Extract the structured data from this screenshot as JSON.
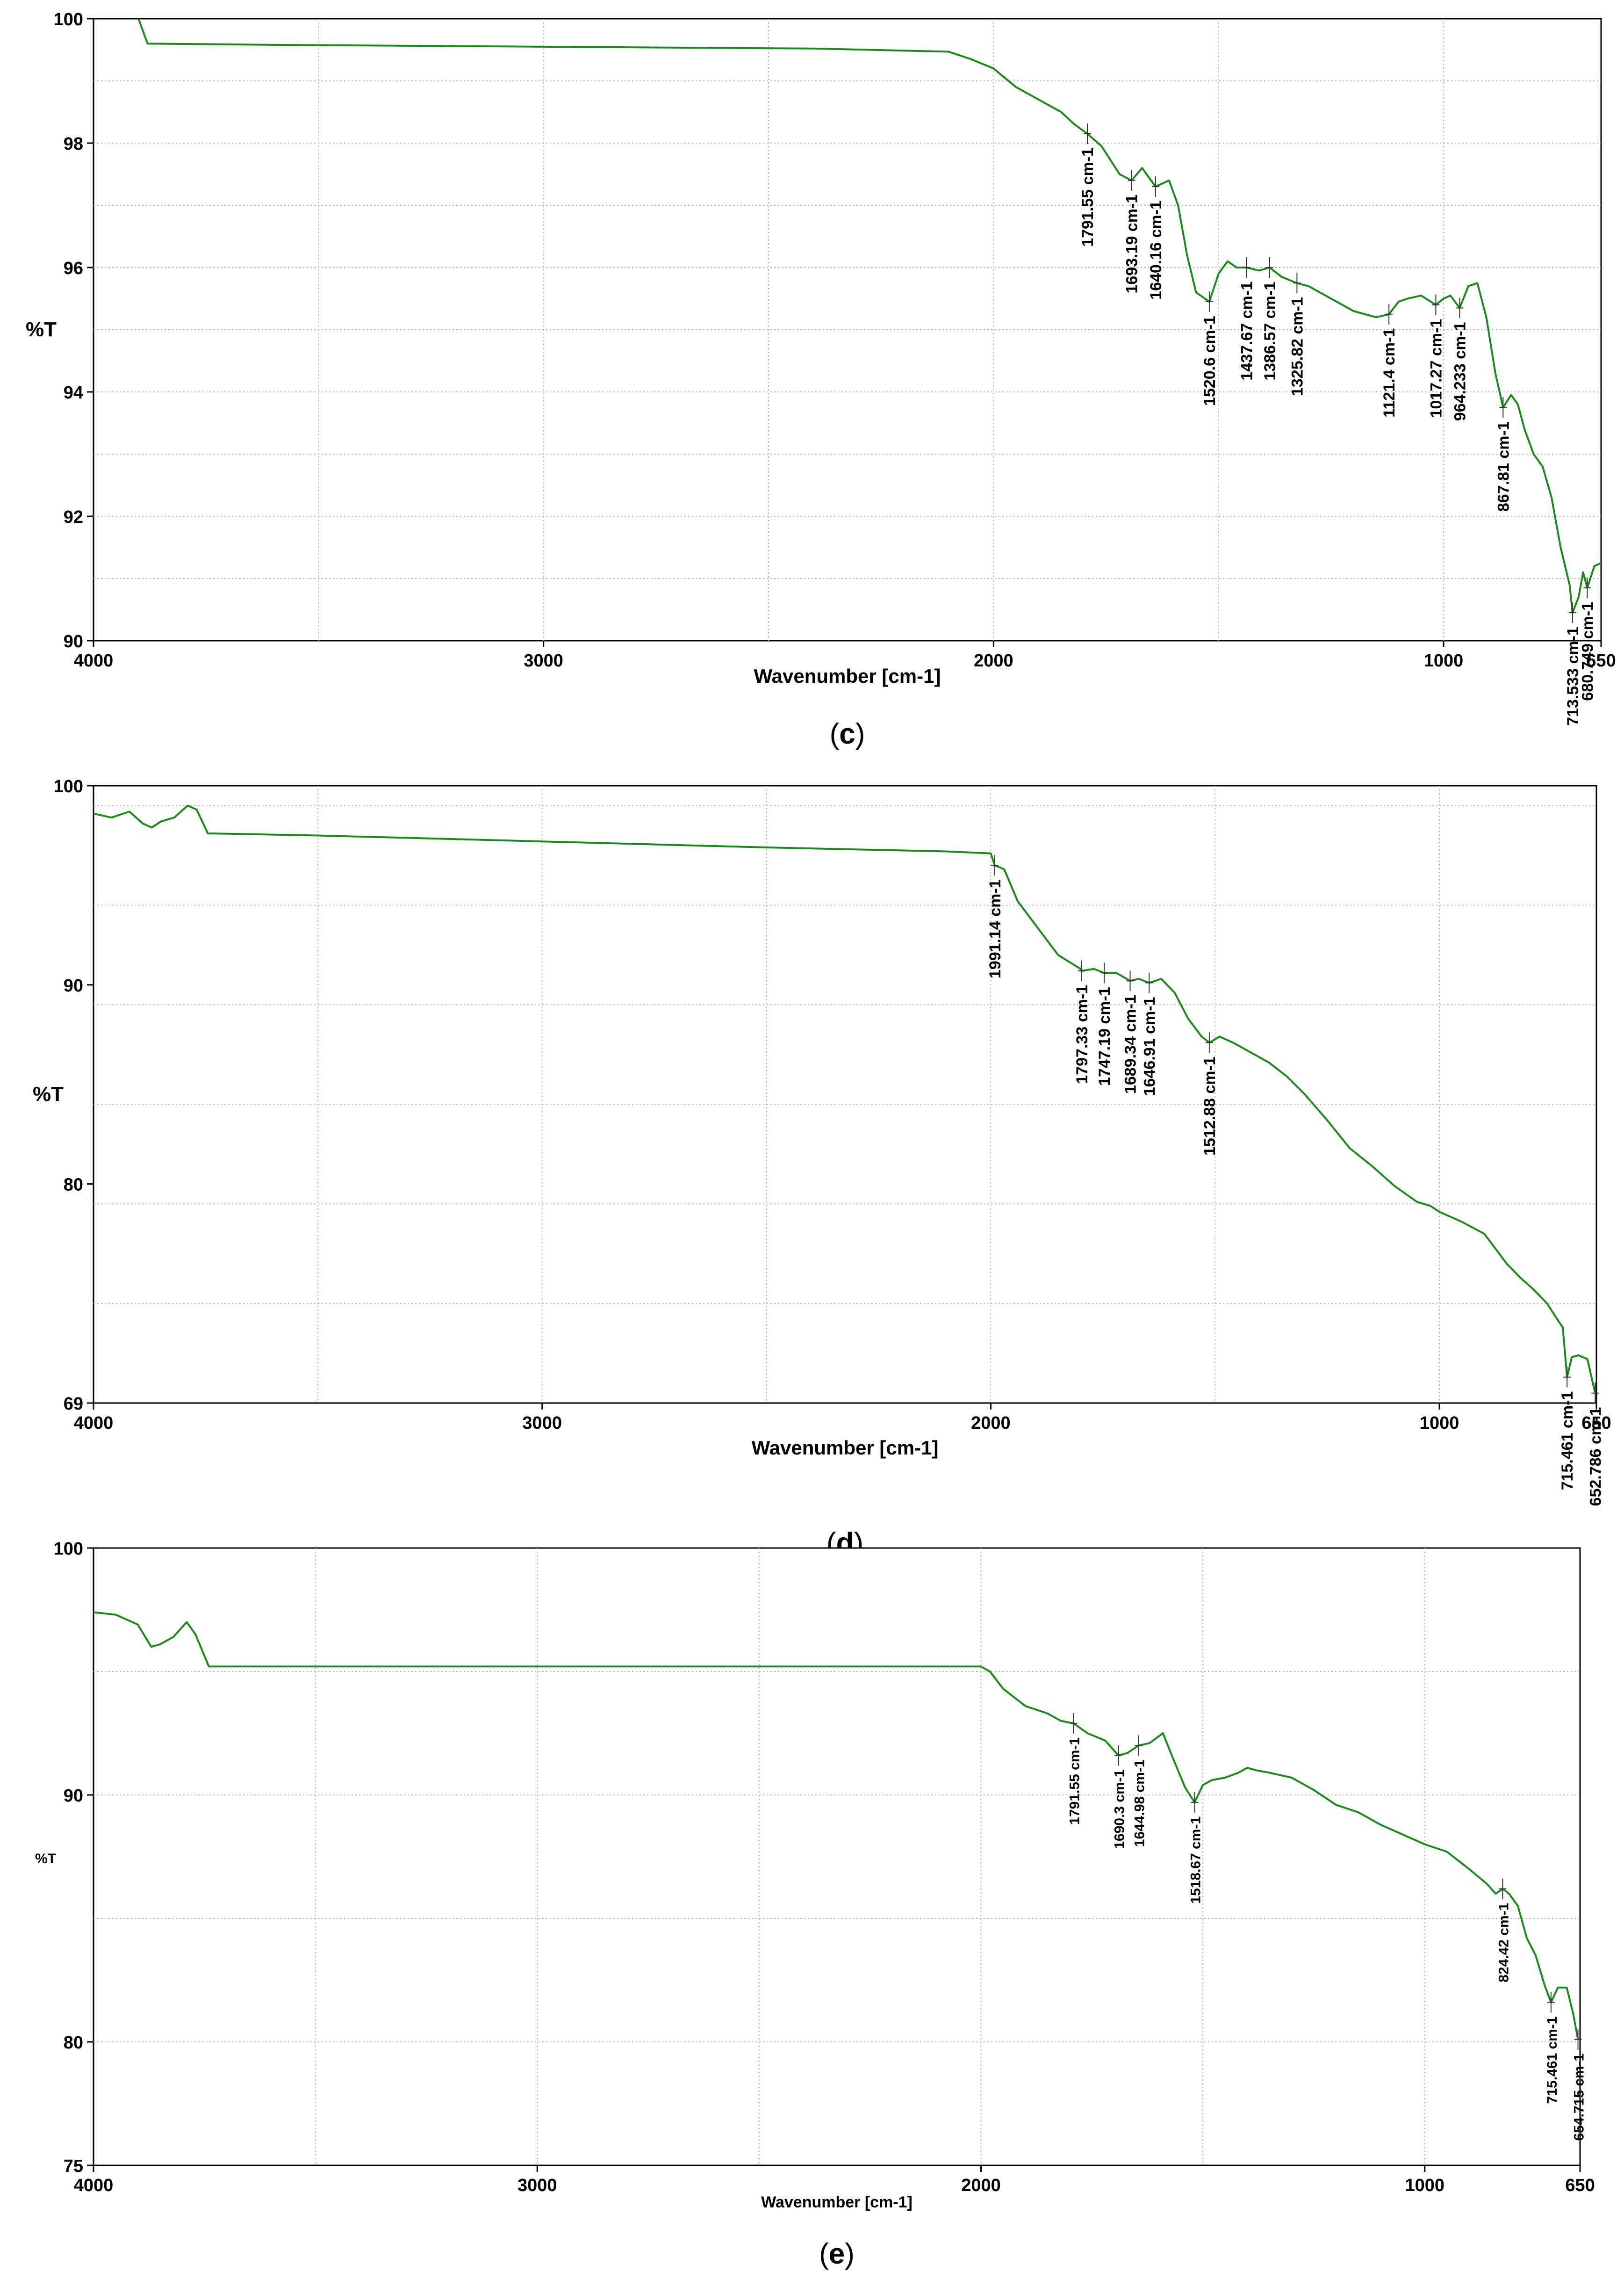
{
  "colors": {
    "line": "#1a8a1a",
    "grid": "#b4b4b4",
    "frame": "#000000",
    "text": "#000000"
  },
  "chart_data": [
    {
      "type": "line",
      "panel_label": "(c)",
      "panel_letter": "c",
      "xlabel": "Wavenumber [cm-1]",
      "ylabel": "%T",
      "xlim": [
        4000,
        650
      ],
      "ylim": [
        90,
        100
      ],
      "x_ticks": [
        "4000",
        "3000",
        "2000",
        "1000",
        "650"
      ],
      "y_ticks": [
        "100",
        "98",
        "96",
        "94",
        "92",
        "90"
      ],
      "grid": true,
      "series": [
        {
          "x": [
            3900,
            3880,
            3600,
            3000,
            2400,
            2100,
            2050,
            2000,
            1950,
            1900,
            1850,
            1820,
            1791.55,
            1760,
            1720,
            1693.19,
            1670,
            1640.16,
            1610,
            1590,
            1570,
            1550,
            1520.6,
            1500,
            1480,
            1460,
            1437.67,
            1410,
            1386.57,
            1360,
            1325.82,
            1300,
            1250,
            1200,
            1150,
            1121.4,
            1100,
            1080,
            1050,
            1017.27,
            1000,
            985,
            964.233,
            945,
            925,
            905,
            885,
            867.81,
            850,
            835,
            820,
            800,
            780,
            760,
            740,
            720,
            713.533,
            700,
            690,
            680.749,
            665,
            650
          ],
          "y": [
            100,
            99.6,
            99.58,
            99.55,
            99.52,
            99.47,
            99.35,
            99.2,
            98.9,
            98.7,
            98.5,
            98.3,
            98.15,
            97.95,
            97.5,
            97.4,
            97.6,
            97.3,
            97.4,
            97.0,
            96.2,
            95.6,
            95.45,
            95.9,
            96.1,
            96.0,
            96.0,
            95.95,
            96.0,
            95.85,
            95.75,
            95.7,
            95.5,
            95.3,
            95.2,
            95.25,
            95.45,
            95.5,
            95.55,
            95.4,
            95.5,
            95.55,
            95.35,
            95.7,
            95.75,
            95.2,
            94.3,
            93.75,
            93.95,
            93.8,
            93.4,
            93.0,
            92.8,
            92.3,
            91.5,
            90.9,
            90.45,
            90.7,
            91.1,
            90.85,
            91.2,
            91.25
          ]
        }
      ],
      "annotations": [
        {
          "x": 1791.55,
          "y": 98.15,
          "text": "1791.55 cm-1"
        },
        {
          "x": 1693.19,
          "y": 97.4,
          "text": "1693.19 cm-1"
        },
        {
          "x": 1640.16,
          "y": 97.3,
          "text": "1640.16 cm-1"
        },
        {
          "x": 1520.6,
          "y": 95.45,
          "text": "1520.6 cm-1"
        },
        {
          "x": 1437.67,
          "y": 96.0,
          "text": "1437.67 cm-1"
        },
        {
          "x": 1386.57,
          "y": 96.0,
          "text": "1386.57 cm-1"
        },
        {
          "x": 1325.82,
          "y": 95.75,
          "text": "1325.82 cm-1"
        },
        {
          "x": 1121.4,
          "y": 95.25,
          "text": "1121.4 cm-1"
        },
        {
          "x": 1017.27,
          "y": 95.4,
          "text": "1017.27 cm-1"
        },
        {
          "x": 964.233,
          "y": 95.35,
          "text": "964.233 cm-1"
        },
        {
          "x": 867.81,
          "y": 93.75,
          "text": "867.81 cm-1"
        },
        {
          "x": 713.533,
          "y": 90.45,
          "text": "713.533 cm-1"
        },
        {
          "x": 680.749,
          "y": 90.85,
          "text": "680.749 cm-1"
        }
      ]
    },
    {
      "type": "line",
      "panel_label": "(d)",
      "panel_letter": "d",
      "xlabel": "Wavenumber [cm-1]",
      "ylabel": "%T",
      "xlim": [
        4000,
        650
      ],
      "ylim": [
        69,
        100
      ],
      "x_ticks": [
        "4000",
        "3000",
        "2000",
        "1000",
        "650"
      ],
      "y_ticks": [
        "100",
        "90",
        "80",
        "69"
      ],
      "grid": true,
      "series": [
        {
          "x": [
            4000,
            3960,
            3920,
            3890,
            3870,
            3850,
            3820,
            3790,
            3770,
            3745,
            3730,
            3500,
            3000,
            2500,
            2100,
            2000,
            1991.14,
            1970,
            1940,
            1900,
            1850,
            1800,
            1797.33,
            1770,
            1747.19,
            1720,
            1689.34,
            1670,
            1646.91,
            1620,
            1590,
            1560,
            1530,
            1512.88,
            1490,
            1460,
            1420,
            1380,
            1340,
            1300,
            1250,
            1200,
            1150,
            1100,
            1050,
            1020,
            1000,
            980,
            950,
            900,
            870,
            850,
            820,
            790,
            760,
            740,
            725,
            715.461,
            705,
            690,
            670,
            660,
            652.786
          ],
          "y": [
            98.6,
            98.4,
            98.7,
            98.1,
            97.9,
            98.2,
            98.4,
            99.0,
            98.8,
            97.6,
            97.6,
            97.5,
            97.2,
            96.9,
            96.7,
            96.6,
            96.0,
            95.8,
            94.2,
            93.0,
            91.5,
            90.8,
            90.7,
            90.8,
            90.6,
            90.6,
            90.2,
            90.3,
            90.1,
            90.3,
            89.6,
            88.3,
            87.4,
            87.1,
            87.4,
            87.1,
            86.6,
            86.1,
            85.4,
            84.5,
            83.2,
            81.8,
            80.9,
            79.9,
            79.1,
            78.9,
            78.6,
            78.4,
            78.1,
            77.5,
            76.6,
            76.0,
            75.3,
            74.7,
            74.0,
            73.3,
            72.8,
            70.3,
            71.3,
            71.4,
            71.2,
            70.2,
            69.5
          ]
        }
      ],
      "annotations": [
        {
          "x": 1991.14,
          "y": 96.0,
          "text": "1991.14 cm-1"
        },
        {
          "x": 1797.33,
          "y": 90.7,
          "text": "1797.33 cm-1"
        },
        {
          "x": 1747.19,
          "y": 90.6,
          "text": "1747.19 cm-1"
        },
        {
          "x": 1689.34,
          "y": 90.2,
          "text": "1689.34 cm-1"
        },
        {
          "x": 1646.91,
          "y": 90.1,
          "text": "1646.91 cm-1"
        },
        {
          "x": 1512.88,
          "y": 87.1,
          "text": "1512.88 cm-1"
        },
        {
          "x": 715.461,
          "y": 70.3,
          "text": "715.461 cm-1"
        },
        {
          "x": 652.786,
          "y": 69.5,
          "text": "652.786 cm-1"
        }
      ]
    },
    {
      "type": "line",
      "panel_label": "(e)",
      "panel_letter": "e",
      "xlabel": "Wavenumber [cm-1]",
      "ylabel": "%T",
      "xlim": [
        4000,
        650
      ],
      "ylim": [
        75,
        100
      ],
      "x_ticks": [
        "4000",
        "3000",
        "2000",
        "1000",
        "650"
      ],
      "y_ticks": [
        "100",
        "90",
        "80",
        "75"
      ],
      "grid": true,
      "series": [
        {
          "x": [
            4000,
            3950,
            3900,
            3870,
            3850,
            3820,
            3790,
            3770,
            3740,
            3720,
            3500,
            3000,
            2500,
            2000,
            1980,
            1950,
            1900,
            1850,
            1820,
            1791.55,
            1760,
            1720,
            1690.3,
            1670,
            1644.98,
            1620,
            1590,
            1570,
            1540,
            1518.67,
            1500,
            1480,
            1450,
            1420,
            1400,
            1380,
            1350,
            1300,
            1250,
            1200,
            1150,
            1100,
            1050,
            1000,
            950,
            900,
            860,
            840,
            824.42,
            810,
            790,
            770,
            750,
            730,
            715.461,
            700,
            680,
            665,
            654.715
          ],
          "y": [
            97.4,
            97.3,
            96.9,
            96.0,
            96.1,
            96.4,
            97.0,
            96.5,
            95.2,
            95.2,
            95.2,
            95.2,
            95.2,
            95.2,
            95.0,
            94.3,
            93.6,
            93.3,
            93.0,
            92.9,
            92.5,
            92.2,
            91.6,
            91.7,
            92.0,
            92.1,
            92.5,
            91.6,
            90.3,
            89.7,
            90.4,
            90.6,
            90.7,
            90.9,
            91.1,
            91.0,
            90.9,
            90.7,
            90.2,
            89.6,
            89.3,
            88.8,
            88.4,
            88.0,
            87.7,
            87.0,
            86.4,
            86.0,
            86.2,
            86.0,
            85.5,
            84.2,
            83.5,
            82.3,
            81.6,
            82.2,
            82.2,
            81.1,
            80.1
          ]
        }
      ],
      "annotations": [
        {
          "x": 1791.55,
          "y": 92.9,
          "text": "1791.55 cm-1"
        },
        {
          "x": 1690.3,
          "y": 91.6,
          "text": "1690.3 cm-1"
        },
        {
          "x": 1644.98,
          "y": 92.0,
          "text": "1644.98 cm-1"
        },
        {
          "x": 1518.67,
          "y": 89.7,
          "text": "1518.67 cm-1"
        },
        {
          "x": 824.42,
          "y": 86.2,
          "text": "824.42 cm-1"
        },
        {
          "x": 715.461,
          "y": 81.6,
          "text": "715.461 cm-1"
        },
        {
          "x": 654.715,
          "y": 80.1,
          "text": "654.715 cm-1"
        }
      ]
    }
  ]
}
